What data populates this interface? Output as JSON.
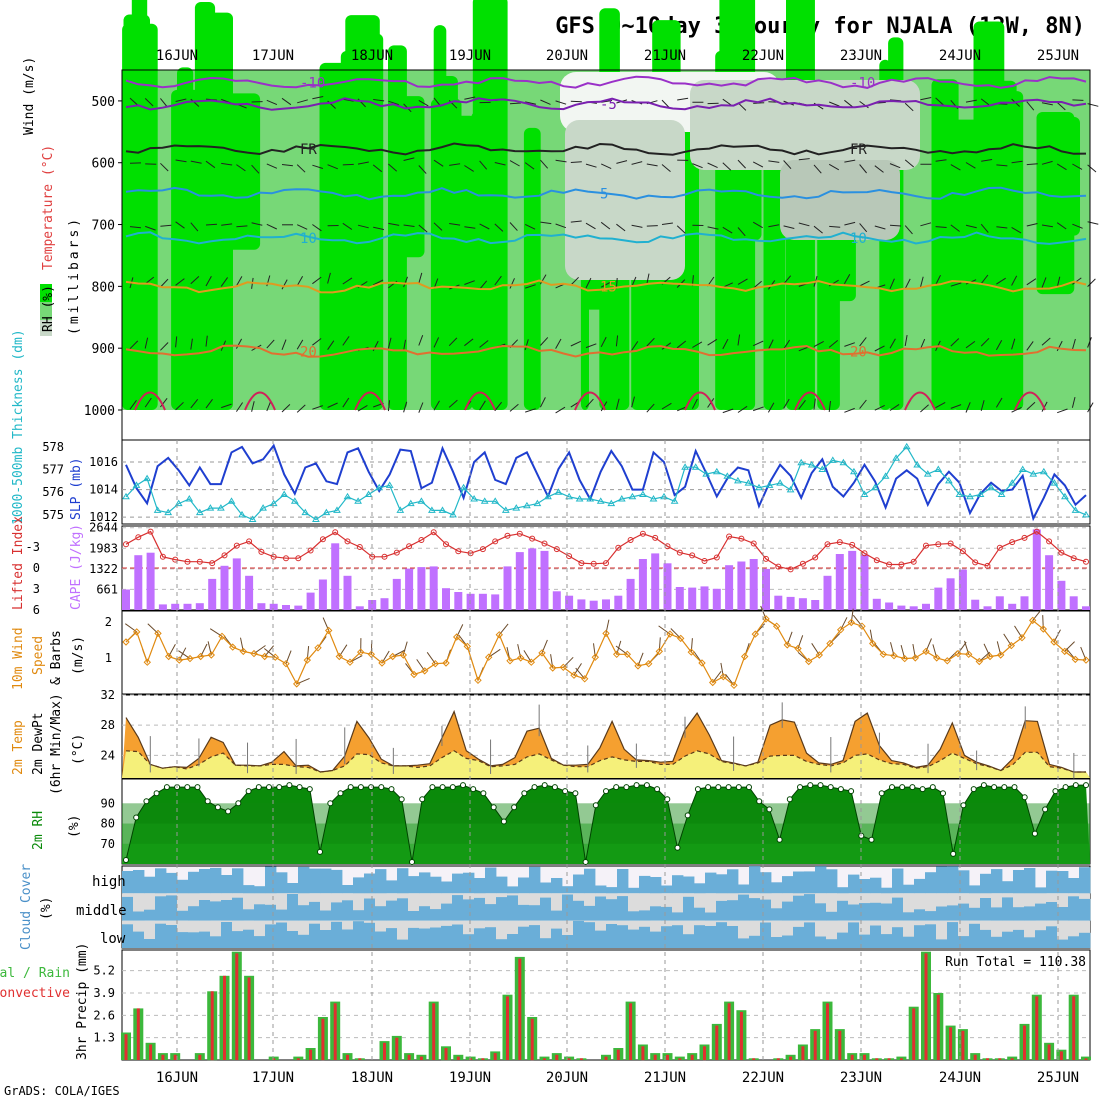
{
  "title": "GFS 0~10day 3-hourly for NJALA (12W, 8N)",
  "credit": "GrADS: COLA/IGES",
  "dates": [
    "16JUN",
    "17JUN",
    "18JUN",
    "19JUN",
    "20JUN",
    "21JUN",
    "22JUN",
    "23JUN",
    "24JUN",
    "25JUN"
  ],
  "colors": {
    "rh_dark": "#00e000",
    "rh_mid": "#77d877",
    "rh_light": "#c8d8c8",
    "slp": "#1f3fd0",
    "thickness": "#22b8c8",
    "lifted_index": "#d83030",
    "cape": "#c070ff",
    "wind_speed": "#e08a10",
    "temp_fill": "#f5a030",
    "dew_fill": "#f5f07a",
    "rh2m": "#0a8a0a",
    "cloud": "#6aaed8",
    "cloud_bg": "#dcdcdc",
    "precip_total": "#3cb83c",
    "precip_conv": "#e03030"
  },
  "labels": {
    "upper_wind": "Wind (m/s)",
    "upper_temp": "Temperature (°C)",
    "upper_rh": "RH (%)",
    "upper_mb": "(millibars)",
    "thickness": "1000-500mb Thickness (dm)",
    "slp": "SLP (mb)",
    "lifted_index": "Lifted Index",
    "cape": "CAPE (J/kg)",
    "wind10m": "10m Wind",
    "speed": "Speed",
    "barbs": "& Barbs",
    "ms": "(m/s)",
    "temp2m": "2m Temp",
    "dew2m": "2m DewPt",
    "minmax": "(6hr Min/Max)",
    "degc": "(°C)",
    "rh2m": "2m RH",
    "pct": "(%)",
    "cloud_cover": "Cloud Cover",
    "cloud_high": "high",
    "cloud_middle": "middle",
    "cloud_low": "low",
    "precip": "3hr Precip (mm)",
    "total_rain": "Total / Rain",
    "convective": "Convective",
    "run_total": "Run Total = 110.38"
  },
  "chart_data": [
    {
      "type": "heatmap",
      "panel": "upper-air",
      "ylabel": "(millibars)",
      "y_ticks": [
        500,
        600,
        700,
        800,
        900,
        1000
      ],
      "ylim": [
        1000,
        450
      ],
      "isotherm_labels": [
        "-10",
        "-5",
        "FR",
        "5",
        "10",
        "15",
        "20"
      ],
      "isotherms": [
        {
          "label": "-10",
          "level": 470,
          "color": "#9a30c8"
        },
        {
          "label": "-5",
          "level": 505,
          "color": "#7a20b0"
        },
        {
          "label": "FR",
          "level": 578,
          "color": "#222222"
        },
        {
          "label": "5",
          "level": 650,
          "color": "#2a90e0"
        },
        {
          "label": "10",
          "level": 722,
          "color": "#20b0d0"
        },
        {
          "label": "15",
          "level": 800,
          "color": "#e09a20"
        },
        {
          "label": "20",
          "level": 905,
          "color": "#e07030"
        }
      ]
    },
    {
      "type": "line",
      "panel": "slp-thickness",
      "slp_ticks": [
        1012,
        1014,
        1016
      ],
      "thickness_ticks": [
        575,
        576,
        577,
        578
      ],
      "series": [
        {
          "name": "SLP",
          "values": [
            1015.8,
            1014.1,
            1013.0,
            1015.7,
            1016.3,
            1015.4,
            1014.3,
            1015.6,
            1014.4,
            1014.4,
            1016.7,
            1017.1,
            1015.9,
            1016.2,
            1017.2,
            1015.1,
            1013.7,
            1015.6,
            1015.9,
            1014.6,
            1014.4,
            1016.7,
            1017.0,
            1015.3,
            1013.9,
            1015.1,
            1016.9,
            1016.8,
            1014.1,
            1014.5,
            1017.0,
            1015.3,
            1013.4,
            1016.0,
            1016.7,
            1014.7,
            1014.4,
            1016.3,
            1016.7,
            1015.1,
            1013.5,
            1015.5,
            1016.7,
            1014.7,
            1013.3,
            1015.3,
            1016.8,
            1015.7,
            1014.0,
            1014.0,
            1016.7,
            1016.0,
            1013.6,
            1014.2,
            1016.8,
            1015.2,
            1013.5,
            1014.8,
            1015.6,
            1015.4,
            1012.8,
            1014.5,
            1015.8,
            1015.0,
            1013.4,
            1015.2,
            1016.2,
            1014.2,
            1013.5,
            1014.5,
            1015.8,
            1014.6,
            1012.7,
            1014.8,
            1015.4,
            1014.8,
            1012.9,
            1014.4,
            1015.3,
            1014.5,
            1012.3,
            1013.7,
            1014.5,
            1013.9,
            1014.0,
            1015.0,
            1011.9,
            1013.4,
            1015.1,
            1014.3,
            1012.9,
            1013.6
          ]
        },
        {
          "name": "Thickness",
          "values": [
            575.8,
            576.3,
            576.6,
            575.2,
            575.1,
            575.5,
            575.7,
            575.1,
            575.3,
            575.3,
            575.6,
            575.0,
            574.8,
            575.3,
            575.5,
            575.9,
            575.6,
            575.1,
            574.8,
            575.1,
            575.2,
            575.8,
            575.6,
            575.9,
            576.2,
            576.3,
            575.2,
            575.5,
            575.6,
            575.2,
            575.2,
            575.0,
            576.2,
            575.7,
            575.6,
            575.6,
            575.2,
            575.3,
            575.4,
            575.5,
            575.8,
            576.0,
            575.8,
            575.7,
            575.7,
            575.6,
            575.5,
            575.7,
            575.8,
            575.9,
            575.7,
            575.8,
            575.6,
            577.1,
            577.1,
            576.8,
            576.9,
            576.7,
            576.5,
            576.4,
            576.2,
            576.3,
            576.4,
            576.1,
            577.3,
            577.2,
            577.0,
            577.4,
            577.3,
            576.9,
            575.9,
            576.2,
            576.7,
            577.5,
            578.0,
            577.2,
            576.8,
            577.0,
            576.5,
            575.9,
            575.8,
            575.9,
            576.2,
            575.9,
            576.4,
            577.0,
            576.8,
            576.9,
            576.4,
            575.8,
            575.2,
            575.0
          ]
        }
      ]
    },
    {
      "type": "bar",
      "panel": "cape-li",
      "cape_ticks": [
        661,
        1322,
        1983,
        2644
      ],
      "li_ticks": [
        -3,
        0,
        3,
        6
      ],
      "series": [
        {
          "name": "CAPE",
          "values": [
            660,
            1760,
            1843,
            180,
            200,
            200,
            220,
            1000,
            1420,
            1660,
            1100,
            220,
            200,
            160,
            140,
            560,
            980,
            2145,
            1100,
            120,
            320,
            380,
            1000,
            1330,
            1380,
            1400,
            700,
            580,
            520,
            520,
            500,
            1400,
            1860,
            1980,
            1900,
            600,
            460,
            340,
            300,
            340,
            460,
            1000,
            1640,
            1820,
            1500,
            740,
            720,
            760,
            680,
            1440,
            1560,
            1640,
            1320,
            460,
            420,
            380,
            320,
            1100,
            1800,
            1900,
            1780,
            360,
            240,
            140,
            120,
            200,
            720,
            1020,
            1300,
            330,
            120,
            440,
            200,
            440,
            2590,
            1760,
            940,
            440,
            120
          ]
        },
        {
          "name": "Lifted Index",
          "values": [
            -3.4,
            -4.4,
            -5.2,
            -1.6,
            -1.2,
            -0.9,
            -0.9,
            -0.7,
            -1.8,
            -3.2,
            -3.8,
            -2.3,
            -1.6,
            -1.4,
            -1.4,
            -2.5,
            -4.1,
            -5.1,
            -3.8,
            -3.0,
            -1.6,
            -1.6,
            -2.2,
            -3.1,
            -4.0,
            -5.1,
            -3.4,
            -2.4,
            -2.1,
            -2.7,
            -3.8,
            -4.6,
            -4.9,
            -4.2,
            -3.5,
            -2.7,
            -1.7,
            -0.7,
            -0.6,
            -0.7,
            -2.9,
            -4.0,
            -4.9,
            -4.3,
            -3.1,
            -2.2,
            -1.8,
            -1.0,
            -1.5,
            -4.5,
            -4.2,
            -3.5,
            -1.3,
            -0.2,
            0.2,
            -0.6,
            -1.5,
            -3.4,
            -3.7,
            -3.3,
            -2.1,
            -1.1,
            -0.5,
            -0.5,
            -0.9,
            -3.2,
            -3.4,
            -3.5,
            -2.4,
            -0.8,
            -0.3,
            -2.9,
            -3.7,
            -4.3,
            -5.2,
            -3.8,
            -2.2,
            -1.4,
            -0.9
          ]
        }
      ]
    },
    {
      "type": "line",
      "panel": "wind10m",
      "y_ticks": [
        1,
        2
      ],
      "series": [
        {
          "name": "Speed",
          "values": [
            1.44,
            1.72,
            0.88,
            1.68,
            1.04,
            0.94,
            0.98,
            1.04,
            1.08,
            1.6,
            1.3,
            1.18,
            1.12,
            1.04,
            1.02,
            0.84,
            0.28,
            0.94,
            1.28,
            1.76,
            1.04,
            0.88,
            1.16,
            1.1,
            0.86,
            1.04,
            1.08,
            0.54,
            0.64,
            0.84,
            0.86,
            1.58,
            1.32,
            0.38,
            1.02,
            1.64,
            0.92,
            1.0,
            0.88,
            1.14,
            0.72,
            0.74,
            0.52,
            0.42,
            1.02,
            1.68,
            1.1,
            1.1,
            0.78,
            0.84,
            1.18,
            1.66,
            1.54,
            1.16,
            0.86,
            0.32,
            0.48,
            0.24,
            1.04,
            1.66,
            2.08,
            1.88,
            1.36,
            1.26,
            0.9,
            1.08,
            1.4,
            1.78,
            1.98,
            1.88,
            1.4,
            1.1,
            1.06,
            0.98,
            1.0,
            1.18,
            1.0,
            0.92,
            1.12,
            1.1,
            0.9,
            1.04,
            1.08,
            1.34,
            1.56,
            2.04,
            1.8,
            1.44,
            1.18,
            0.96,
            0.94
          ]
        }
      ]
    },
    {
      "type": "area",
      "panel": "temp-dew",
      "y_ticks": [
        24,
        28,
        32
      ],
      "series": [
        {
          "name": "2m Temp",
          "values": [
            29.0,
            26.4,
            22.8,
            22.3,
            22.5,
            22.4,
            23.6,
            26.4,
            25.7,
            22.7,
            22.7,
            22.6,
            23.1,
            24.5,
            22.6,
            22.7,
            21.8,
            22.0,
            23.9,
            28.5,
            26.3,
            23.5,
            22.6,
            22.6,
            22.7,
            22.9,
            26.3,
            29.8,
            24.6,
            23.5,
            22.6,
            22.8,
            23.7,
            27.2,
            27.6,
            23.6,
            22.7,
            22.7,
            22.8,
            25.0,
            28.5,
            24.8,
            23.4,
            23.3,
            23.1,
            23.2,
            27.4,
            29.6,
            26.7,
            23.3,
            23.0,
            22.6,
            23.1,
            28.0,
            28.7,
            28.4,
            24.3,
            23.0,
            22.8,
            23.3,
            28.5,
            29.6,
            25.3,
            23.3,
            23.0,
            22.4,
            22.7,
            24.8,
            28.3,
            24.0,
            23.1,
            22.6,
            22.0,
            23.6,
            28.6,
            28.5,
            22.8,
            22.4,
            21.8,
            21.8
          ]
        },
        {
          "name": "2m DewPt",
          "values": [
            24.6,
            24.5,
            22.8,
            22.3,
            22.5,
            22.2,
            22.8,
            23.8,
            24.3,
            22.7,
            22.6,
            22.6,
            22.8,
            22.8,
            22.5,
            22.4,
            21.8,
            22.0,
            22.6,
            24.2,
            24.1,
            23.0,
            22.6,
            22.6,
            22.4,
            22.6,
            23.7,
            24.6,
            23.6,
            23.3,
            22.5,
            22.6,
            22.8,
            23.8,
            24.2,
            23.4,
            22.7,
            22.5,
            22.5,
            23.3,
            23.8,
            23.4,
            23.2,
            23.2,
            22.8,
            22.8,
            23.9,
            24.6,
            24.2,
            23.2,
            22.9,
            22.6,
            23.0,
            23.9,
            24.0,
            24.0,
            23.2,
            22.8,
            22.6,
            23.0,
            24.0,
            24.2,
            23.4,
            22.9,
            22.8,
            22.3,
            22.5,
            23.3,
            24.3,
            23.6,
            22.9,
            22.5,
            22.0,
            22.8,
            24.4,
            24.4,
            22.5,
            22.3,
            21.8,
            21.8
          ]
        }
      ]
    },
    {
      "type": "area",
      "panel": "rh2m",
      "y_ticks": [
        70,
        80,
        90
      ],
      "series": [
        {
          "name": "2m RH",
          "values": [
            62,
            83,
            91,
            95,
            98,
            98,
            98,
            98,
            91,
            88,
            86,
            90,
            96,
            98,
            98,
            98,
            99,
            98,
            97,
            66,
            90,
            95,
            98,
            98,
            98,
            98,
            97,
            92,
            61,
            92,
            98,
            98,
            98,
            99,
            97,
            95,
            88,
            81,
            88,
            95,
            98,
            99,
            98,
            96,
            95,
            61,
            89,
            96,
            98,
            98,
            99,
            99,
            97,
            92,
            68,
            84,
            97,
            98,
            98,
            98,
            98,
            98,
            91,
            87,
            72,
            92,
            98,
            99,
            99,
            98,
            97,
            96,
            74,
            72,
            95,
            98,
            98,
            98,
            97,
            98,
            95,
            65,
            89,
            97,
            99,
            98,
            98,
            98,
            93,
            75,
            87,
            96,
            98,
            99,
            99
          ]
        }
      ]
    },
    {
      "type": "heatmap",
      "panel": "cloud-cover",
      "rows": [
        "high",
        "middle",
        "low"
      ]
    },
    {
      "type": "bar",
      "panel": "precip",
      "y_ticks": [
        1.3,
        2.6,
        3.9,
        5.2
      ],
      "run_total": 110.38,
      "series": [
        {
          "name": "Total / Rain",
          "values": [
            1.6,
            3.0,
            1.0,
            0.4,
            0.4,
            0,
            0.4,
            4.0,
            4.9,
            6.3,
            4.9,
            0,
            0.2,
            0,
            0.2,
            0.7,
            2.5,
            3.4,
            0.4,
            0.1,
            0,
            1.1,
            1.4,
            0.4,
            0.3,
            3.4,
            0.8,
            0.3,
            0.2,
            0.1,
            0.5,
            3.8,
            6.0,
            2.5,
            0.2,
            0.4,
            0.2,
            0.1,
            0,
            0.3,
            0.7,
            3.4,
            0.9,
            0.4,
            0.4,
            0.2,
            0.4,
            0.9,
            2.1,
            3.4,
            2.9,
            0.1,
            0,
            0.1,
            0.3,
            0.9,
            1.8,
            3.4,
            1.8,
            0.4,
            0.4,
            0.1,
            0.1,
            0.2,
            3.1,
            6.3,
            3.9,
            2.0,
            1.8,
            0.4,
            0.1,
            0.1,
            0.2,
            2.1,
            3.8,
            1.0,
            0.6,
            3.8,
            0.2
          ]
        },
        {
          "name": "Convective",
          "values": [
            1.5,
            3.0,
            0.9,
            0.3,
            0.3,
            0,
            0.3,
            4.0,
            4.9,
            6.2,
            4.8,
            0,
            0.1,
            0,
            0.1,
            0.6,
            2.4,
            3.3,
            0.3,
            0.1,
            0,
            1.0,
            1.3,
            0.3,
            0.2,
            3.3,
            0.7,
            0.2,
            0.1,
            0.1,
            0.4,
            3.7,
            5.9,
            2.4,
            0.1,
            0.3,
            0.1,
            0.1,
            0,
            0.2,
            0.6,
            3.3,
            0.8,
            0.3,
            0.3,
            0.1,
            0.3,
            0.8,
            2.0,
            3.3,
            2.8,
            0.1,
            0,
            0.1,
            0.2,
            0.8,
            1.7,
            3.3,
            1.7,
            0.3,
            0.3,
            0.1,
            0.1,
            0.1,
            3.0,
            6.2,
            3.8,
            1.9,
            1.7,
            0.3,
            0.1,
            0.1,
            0.1,
            2.0,
            3.7,
            0.9,
            0.5,
            3.7,
            0.1
          ]
        }
      ]
    }
  ]
}
